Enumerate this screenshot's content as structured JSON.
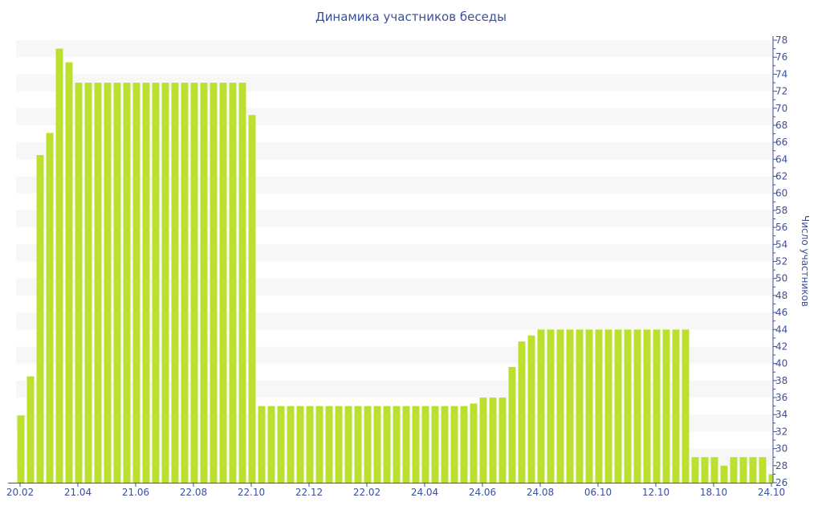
{
  "chart_data": {
    "type": "bar",
    "title": "Динамика участников беседы",
    "ylabel": "Число участников",
    "xlabel": "",
    "ylim": [
      26,
      78
    ],
    "y_ticks": [
      26,
      28,
      30,
      32,
      34,
      36,
      38,
      40,
      42,
      44,
      46,
      48,
      50,
      52,
      54,
      56,
      58,
      60,
      62,
      64,
      66,
      68,
      70,
      72,
      74,
      76,
      78
    ],
    "y_axis_position": "right",
    "grid": "alternating horizontal bands",
    "x_tick_labels": [
      "20.02",
      "21.04",
      "21.06",
      "22.08",
      "22.10",
      "22.12",
      "22.02",
      "24.04",
      "24.06",
      "24.08",
      "06.10",
      "12.10",
      "18.10",
      "24.10"
    ],
    "x_tick_every_n_bars": 6,
    "bar_color": "#bbe02f",
    "band_color": "#f7f7f7",
    "axis_color": "#3b4f9c",
    "values": [
      33.9,
      38.5,
      64.5,
      67.1,
      77,
      75.4,
      73,
      73,
      73,
      73,
      73,
      73,
      73,
      73,
      73,
      73,
      73,
      73,
      73,
      73,
      73,
      73,
      73,
      73,
      69.2,
      35,
      35,
      35,
      35,
      35,
      35,
      35,
      35,
      35,
      35,
      35,
      35,
      35,
      35,
      35,
      35,
      35,
      35,
      35,
      35,
      35,
      35,
      35.3,
      36,
      36,
      36,
      39.6,
      42.6,
      43.3,
      44,
      44,
      44,
      44,
      44,
      44,
      44,
      44,
      44,
      44,
      44,
      44,
      44,
      44,
      44,
      44,
      29,
      29,
      29,
      28,
      29,
      29,
      29,
      29,
      27
    ]
  }
}
